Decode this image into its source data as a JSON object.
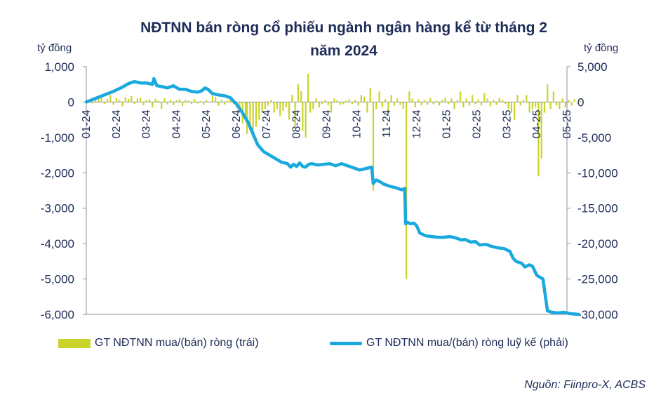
{
  "chart_data": {
    "type": "bar+line",
    "title": "NĐTNN bán ròng cổ phiếu ngành ngân hàng kể từ tháng 2",
    "title_line2": "năm 2024",
    "ylabel_left": "tỷ đồng",
    "ylabel_right": "tỷ đồng",
    "ylim_left": [
      -6000,
      1000
    ],
    "ylim_right": [
      -30000,
      5000
    ],
    "yticks_left": [
      "1,000",
      "0",
      "-1,000",
      "-2,000",
      "-3,000",
      "-4,000",
      "-5,000",
      "-6,000"
    ],
    "yticks_right": [
      "5,000",
      "0",
      "-5,000",
      "-10,000",
      "-15,000",
      "-20,000",
      "-25,000",
      "-30,000"
    ],
    "x_ticks": [
      "01-24",
      "02-24",
      "03-24",
      "04-24",
      "05-24",
      "06-24",
      "07-24",
      "08-24",
      "09-24",
      "10-24",
      "11-24",
      "12-24",
      "01-25",
      "02-25",
      "03-25",
      "04-25",
      "05-25"
    ],
    "series": [
      {
        "name": "GT NĐTNN mua/(bán) ròng (trái)",
        "kind": "bar",
        "color": "#c9d42a",
        "points": [
          [
            0.1,
            50
          ],
          [
            0.2,
            -40
          ],
          [
            0.3,
            120
          ],
          [
            0.4,
            80
          ],
          [
            0.5,
            150
          ],
          [
            0.6,
            -60
          ],
          [
            0.7,
            90
          ],
          [
            0.8,
            200
          ],
          [
            0.9,
            -80
          ],
          [
            1.0,
            110
          ],
          [
            1.1,
            60
          ],
          [
            1.2,
            -120
          ],
          [
            1.3,
            140
          ],
          [
            1.4,
            90
          ],
          [
            1.5,
            170
          ],
          [
            1.6,
            -50
          ],
          [
            1.7,
            100
          ],
          [
            1.8,
            130
          ],
          [
            1.9,
            -90
          ],
          [
            2.0,
            60
          ],
          [
            2.1,
            80
          ],
          [
            2.2,
            -150
          ],
          [
            2.3,
            90
          ],
          [
            2.4,
            40
          ],
          [
            2.5,
            -200
          ],
          [
            2.6,
            110
          ],
          [
            2.7,
            -70
          ],
          [
            2.8,
            60
          ],
          [
            2.9,
            -90
          ],
          [
            3.0,
            50
          ],
          [
            3.1,
            80
          ],
          [
            3.2,
            -110
          ],
          [
            3.3,
            60
          ],
          [
            3.4,
            40
          ],
          [
            3.5,
            -60
          ],
          [
            3.6,
            90
          ],
          [
            3.7,
            -40
          ],
          [
            3.8,
            30
          ],
          [
            3.9,
            -80
          ],
          [
            4.0,
            50
          ],
          [
            4.2,
            180
          ],
          [
            4.3,
            150
          ],
          [
            4.4,
            -100
          ],
          [
            4.5,
            60
          ],
          [
            4.6,
            -70
          ],
          [
            4.7,
            40
          ],
          [
            4.8,
            70
          ],
          [
            4.9,
            -60
          ],
          [
            5.0,
            -150
          ],
          [
            5.1,
            -300
          ],
          [
            5.2,
            -600
          ],
          [
            5.3,
            -400
          ],
          [
            5.35,
            -900
          ],
          [
            5.45,
            -800
          ],
          [
            5.55,
            -1000
          ],
          [
            5.65,
            -700
          ],
          [
            5.75,
            -500
          ],
          [
            5.85,
            -300
          ],
          [
            5.95,
            -200
          ],
          [
            6.05,
            -100
          ],
          [
            6.15,
            60
          ],
          [
            6.25,
            -300
          ],
          [
            6.35,
            -200
          ],
          [
            6.45,
            -400
          ],
          [
            6.55,
            -250
          ],
          [
            6.65,
            -150
          ],
          [
            6.75,
            -500
          ],
          [
            6.85,
            200
          ],
          [
            6.95,
            -700
          ],
          [
            7.05,
            500
          ],
          [
            7.15,
            300
          ],
          [
            7.2,
            -800
          ],
          [
            7.3,
            -1000
          ],
          [
            7.38,
            800
          ],
          [
            7.45,
            -300
          ],
          [
            7.55,
            -200
          ],
          [
            7.65,
            100
          ],
          [
            7.75,
            -150
          ],
          [
            7.85,
            -60
          ],
          [
            7.95,
            60
          ],
          [
            8.05,
            -100
          ],
          [
            8.15,
            -300
          ],
          [
            8.25,
            100
          ],
          [
            8.35,
            50
          ],
          [
            8.45,
            -80
          ],
          [
            8.55,
            -60
          ],
          [
            8.65,
            40
          ],
          [
            8.75,
            80
          ],
          [
            8.85,
            -50
          ],
          [
            8.95,
            60
          ],
          [
            9.05,
            -100
          ],
          [
            9.15,
            200
          ],
          [
            9.25,
            150
          ],
          [
            9.35,
            -300
          ],
          [
            9.45,
            400
          ],
          [
            9.55,
            -2500
          ],
          [
            9.65,
            -200
          ],
          [
            9.75,
            300
          ],
          [
            9.85,
            -150
          ],
          [
            9.95,
            80
          ],
          [
            10.05,
            -300
          ],
          [
            10.15,
            200
          ],
          [
            10.25,
            -100
          ],
          [
            10.35,
            100
          ],
          [
            10.45,
            -80
          ],
          [
            10.55,
            -200
          ],
          [
            10.65,
            -5000
          ],
          [
            10.75,
            300
          ],
          [
            10.85,
            100
          ],
          [
            10.95,
            -150
          ],
          [
            11.05,
            80
          ],
          [
            11.15,
            -100
          ],
          [
            11.25,
            60
          ],
          [
            11.35,
            -80
          ],
          [
            11.45,
            120
          ],
          [
            11.55,
            -60
          ],
          [
            11.65,
            40
          ],
          [
            11.75,
            -100
          ],
          [
            11.85,
            70
          ],
          [
            11.95,
            120
          ],
          [
            12.05,
            -60
          ],
          [
            12.15,
            100
          ],
          [
            12.25,
            -200
          ],
          [
            12.35,
            60
          ],
          [
            12.45,
            300
          ],
          [
            12.55,
            -150
          ],
          [
            12.65,
            100
          ],
          [
            12.75,
            -100
          ],
          [
            12.85,
            200
          ],
          [
            12.95,
            -60
          ],
          [
            13.05,
            80
          ],
          [
            13.15,
            -100
          ],
          [
            13.25,
            250
          ],
          [
            13.35,
            100
          ],
          [
            13.45,
            -120
          ],
          [
            13.55,
            60
          ],
          [
            13.65,
            -80
          ],
          [
            13.75,
            120
          ],
          [
            13.85,
            60
          ],
          [
            13.95,
            -50
          ],
          [
            14.05,
            -200
          ],
          [
            14.15,
            -300
          ],
          [
            14.25,
            -500
          ],
          [
            14.35,
            200
          ],
          [
            14.45,
            -100
          ],
          [
            14.55,
            60
          ],
          [
            14.65,
            200
          ],
          [
            14.75,
            -300
          ],
          [
            14.85,
            -200
          ],
          [
            14.95,
            -150
          ],
          [
            15.05,
            -2100
          ],
          [
            15.15,
            -1600
          ],
          [
            15.25,
            -300
          ],
          [
            15.35,
            500
          ],
          [
            15.45,
            -200
          ],
          [
            15.55,
            300
          ],
          [
            15.65,
            -100
          ],
          [
            15.75,
            -200
          ],
          [
            15.85,
            100
          ],
          [
            15.95,
            -150
          ],
          [
            16.05,
            60
          ],
          [
            16.15,
            -100
          ],
          [
            16.25,
            80
          ],
          [
            16.35,
            -60
          ],
          [
            16.45,
            40
          ]
        ]
      },
      {
        "name": "GT NĐTNN mua/(bán) ròng luỹ kế (phải)",
        "kind": "line",
        "color": "#1aa9de",
        "points": [
          [
            0,
            0
          ],
          [
            0.3,
            500
          ],
          [
            0.6,
            1000
          ],
          [
            0.9,
            1500
          ],
          [
            1.2,
            2100
          ],
          [
            1.4,
            2600
          ],
          [
            1.6,
            2900
          ],
          [
            1.8,
            2700
          ],
          [
            2.0,
            2700
          ],
          [
            2.2,
            2500
          ],
          [
            2.25,
            3300
          ],
          [
            2.35,
            2300
          ],
          [
            2.5,
            2200
          ],
          [
            2.7,
            2000
          ],
          [
            2.9,
            2300
          ],
          [
            3.1,
            1800
          ],
          [
            3.3,
            1800
          ],
          [
            3.5,
            1500
          ],
          [
            3.7,
            1400
          ],
          [
            3.85,
            1600
          ],
          [
            3.95,
            2000
          ],
          [
            4.05,
            1800
          ],
          [
            4.2,
            1200
          ],
          [
            4.4,
            1000
          ],
          [
            4.6,
            900
          ],
          [
            4.8,
            600
          ],
          [
            5.0,
            -300
          ],
          [
            5.2,
            -1500
          ],
          [
            5.4,
            -3000
          ],
          [
            5.6,
            -5000
          ],
          [
            5.7,
            -6000
          ],
          [
            5.9,
            -7000
          ],
          [
            6.1,
            -7500
          ],
          [
            6.3,
            -8000
          ],
          [
            6.5,
            -8500
          ],
          [
            6.7,
            -8700
          ],
          [
            6.8,
            -9200
          ],
          [
            6.9,
            -8800
          ],
          [
            7.0,
            -9100
          ],
          [
            7.1,
            -8600
          ],
          [
            7.2,
            -9100
          ],
          [
            7.3,
            -9200
          ],
          [
            7.4,
            -8800
          ],
          [
            7.5,
            -8700
          ],
          [
            7.7,
            -8900
          ],
          [
            7.9,
            -8800
          ],
          [
            8.1,
            -8700
          ],
          [
            8.3,
            -9000
          ],
          [
            8.5,
            -8700
          ],
          [
            8.7,
            -9000
          ],
          [
            8.9,
            -9300
          ],
          [
            9.1,
            -9600
          ],
          [
            9.3,
            -9400
          ],
          [
            9.5,
            -9200
          ],
          [
            9.55,
            -11500
          ],
          [
            9.65,
            -11000
          ],
          [
            9.8,
            -11300
          ],
          [
            9.9,
            -11600
          ],
          [
            10.1,
            -11900
          ],
          [
            10.3,
            -12100
          ],
          [
            10.5,
            -12400
          ],
          [
            10.6,
            -12200
          ],
          [
            10.63,
            -17200
          ],
          [
            10.7,
            -17000
          ],
          [
            10.8,
            -17200
          ],
          [
            10.9,
            -17100
          ],
          [
            11.0,
            -17500
          ],
          [
            11.1,
            -18500
          ],
          [
            11.3,
            -18900
          ],
          [
            11.5,
            -19000
          ],
          [
            11.7,
            -19100
          ],
          [
            11.9,
            -19100
          ],
          [
            12.1,
            -19000
          ],
          [
            12.3,
            -19200
          ],
          [
            12.5,
            -19500
          ],
          [
            12.6,
            -19400
          ],
          [
            12.8,
            -19800
          ],
          [
            12.95,
            -19700
          ],
          [
            13.1,
            -20200
          ],
          [
            13.3,
            -20100
          ],
          [
            13.5,
            -20400
          ],
          [
            13.7,
            -20600
          ],
          [
            13.9,
            -20700
          ],
          [
            14.1,
            -21100
          ],
          [
            14.2,
            -22000
          ],
          [
            14.3,
            -22500
          ],
          [
            14.5,
            -22800
          ],
          [
            14.6,
            -23300
          ],
          [
            14.75,
            -23000
          ],
          [
            14.85,
            -23200
          ],
          [
            15.0,
            -24500
          ],
          [
            15.2,
            -25000
          ],
          [
            15.35,
            -29500
          ],
          [
            15.5,
            -29700
          ],
          [
            15.7,
            -29800
          ],
          [
            15.9,
            -29700
          ],
          [
            16.1,
            -29900
          ],
          [
            16.4,
            -30000
          ]
        ]
      }
    ],
    "legend_placement": "bottom"
  },
  "source": "Nguồn: Fiinpro-X, ACBS"
}
